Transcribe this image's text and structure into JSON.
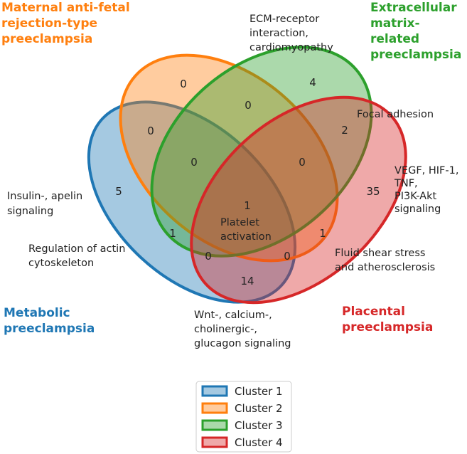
{
  "sets": [
    {
      "id": "cluster1",
      "title_lines": [
        "Metabolic",
        "preeclampsia"
      ],
      "color": "#1f77b4"
    },
    {
      "id": "cluster2",
      "title_lines": [
        "Maternal anti-fetal",
        "rejection-type",
        "preeclampsia"
      ],
      "color": "#ff7f0e"
    },
    {
      "id": "cluster3",
      "title_lines": [
        "Extracellular",
        "matrix-",
        "related",
        "preeclampsia"
      ],
      "color": "#2ca02c"
    },
    {
      "id": "cluster4",
      "title_lines": [
        "Placental",
        "preeclampsia"
      ],
      "color": "#d62728"
    }
  ],
  "region_counts": {
    "c2_only": "0",
    "c3_only": "4",
    "c2_c3": "0",
    "c1_c2": "0",
    "c3_c4": "2",
    "c1_c2_c3": "0",
    "c2_c3_c4": "0",
    "c1_only": "5",
    "c4_only": "35",
    "all_four": "1",
    "c1_c3": "1",
    "c2_c4": "1",
    "c1_c2_c4": "0",
    "c1_c3_c4": "0",
    "c1_c4": "14"
  },
  "annotations": {
    "ecm": [
      "ECM-receptor",
      "interaction,",
      "cardiomyopathy"
    ],
    "focal": [
      "Focal adhesion"
    ],
    "vegf": [
      "VEGF, HIF-1,",
      "TNF,",
      "PI3K-Akt",
      "signaling"
    ],
    "insulin": [
      "Insulin-, apelin",
      "signaling"
    ],
    "platelet": [
      "Platelet",
      "activation"
    ],
    "actin": [
      "Regulation of actin",
      "cytoskeleton"
    ],
    "fluid": [
      "Fluid shear stress",
      "and atherosclerosis"
    ],
    "wnt": [
      "Wnt-, calcium-,",
      "cholinergic-,",
      "glucagon signaling"
    ]
  },
  "legend": [
    {
      "label": "Cluster 1",
      "color": "#1f77b4"
    },
    {
      "label": "Cluster 2",
      "color": "#ff7f0e"
    },
    {
      "label": "Cluster 3",
      "color": "#2ca02c"
    },
    {
      "label": "Cluster 4",
      "color": "#d62728"
    }
  ]
}
